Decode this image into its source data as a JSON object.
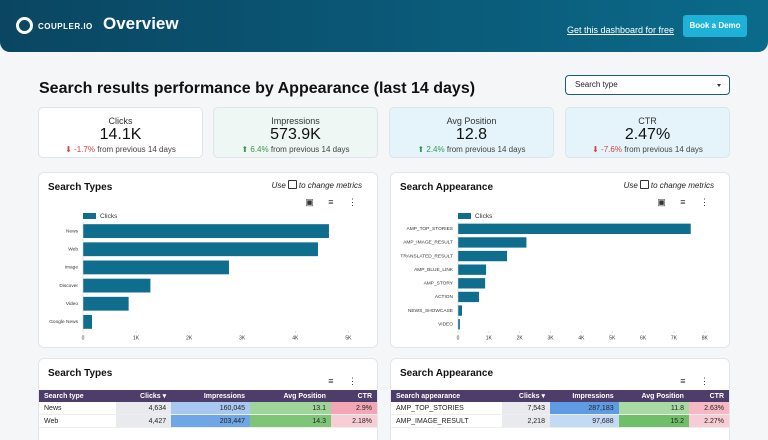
{
  "header": {
    "logo": "COUPLER.IO",
    "title": "Overview",
    "link": "Get this dashboard for free",
    "button": "Book a Demo"
  },
  "section": {
    "title": "Search results performance by Appearance (last 14 days)",
    "filter": "Search type"
  },
  "kpis": [
    {
      "label": "Clicks",
      "value": "14.1K",
      "change": "-1.7%",
      "note": "from previous 14 days"
    },
    {
      "label": "Impressions",
      "value": "573.9K",
      "change": "6.4%",
      "note": "from previous 14 days"
    },
    {
      "label": "Avg Position",
      "value": "12.8",
      "change": "2.4%",
      "note": "from previous 14 days"
    },
    {
      "label": "CTR",
      "value": "2.47%",
      "change": "-7.6%",
      "note": "from previous 14 days"
    }
  ],
  "panels": [
    {
      "hint_before": "Use",
      "hint_after": "to change metrics"
    },
    {
      "hint_before": "Use",
      "hint_after": "to change metrics"
    }
  ],
  "chart_data": [
    {
      "type": "bar",
      "orientation": "horizontal",
      "title": "Search Types",
      "categories": [
        "News",
        "Web",
        "Image",
        "Discover",
        "Video",
        "Google News"
      ],
      "series": [
        {
          "name": "Clicks",
          "color": "#0f6e8e",
          "values": [
            4634,
            4427,
            2750,
            1270,
            860,
            170
          ]
        }
      ],
      "xlim": [
        0,
        5200
      ],
      "xticks": [
        0,
        {
          "value": 1000,
          "label": "1K"
        },
        {
          "value": 2000,
          "label": "2K"
        },
        {
          "value": 3000,
          "label": "3K"
        },
        {
          "value": 4000,
          "label": "4K"
        },
        {
          "value": 5000,
          "label": "5K"
        }
      ]
    },
    {
      "type": "bar",
      "orientation": "horizontal",
      "title": "Search Appearance",
      "categories": [
        "AMP_TOP_STORIES",
        "AMP_IMAGE_RESULT",
        "TRANSLATED_RESULT",
        "AMP_BLUE_LINK",
        "AMP_STORY",
        "ACTION",
        "NEWS_SHOWCASE",
        "VIDEO"
      ],
      "series": [
        {
          "name": "Clicks",
          "color": "#0f6e8e",
          "values": [
            7543,
            2218,
            1590,
            910,
            880,
            680,
            130,
            60
          ]
        }
      ],
      "xlim": [
        0,
        8200
      ],
      "xticks": [
        0,
        {
          "value": 1000,
          "label": "1K"
        },
        {
          "value": 2000,
          "label": "2K"
        },
        {
          "value": 3000,
          "label": "3K"
        },
        {
          "value": 4000,
          "label": "4K"
        },
        {
          "value": 5000,
          "label": "5K"
        },
        {
          "value": 6000,
          "label": "6K"
        },
        {
          "value": 7000,
          "label": "7K"
        },
        {
          "value": 8000,
          "label": "8K"
        }
      ]
    }
  ],
  "tables": [
    {
      "title": "Search Types",
      "columns": [
        "Search type",
        "Clicks",
        "Impressions",
        "Avg Position",
        "CTR"
      ],
      "rows": [
        [
          "News",
          "4,634",
          "160,045",
          "13.1",
          "2.9%"
        ],
        [
          "Web",
          "4,427",
          "203,447",
          "14.3",
          "2.18%"
        ]
      ]
    },
    {
      "title": "Search Appearance",
      "columns": [
        "Search appearance",
        "Clicks",
        "Impressions",
        "Avg Position",
        "CTR"
      ],
      "rows": [
        [
          "AMP_TOP_STORIES",
          "7,543",
          "287,183",
          "11.8",
          "2.63%"
        ],
        [
          "AMP_IMAGE_RESULT",
          "2,218",
          "97,688",
          "15.2",
          "2.27%"
        ]
      ]
    }
  ]
}
